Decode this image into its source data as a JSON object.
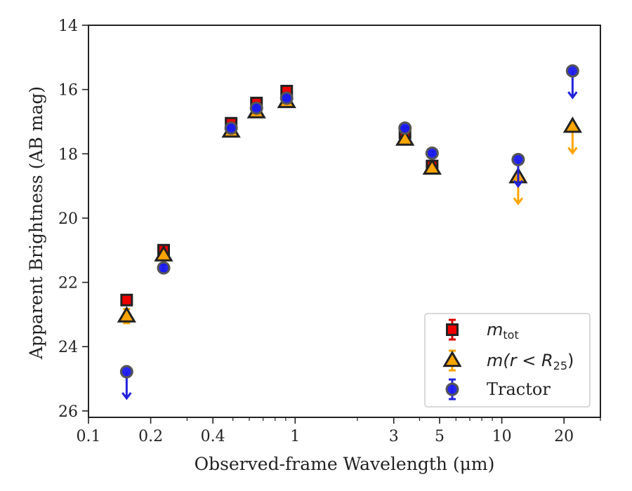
{
  "chart_data": {
    "type": "scatter",
    "xlabel": "Observed-frame Wavelength (μm)",
    "ylabel": "Apparent Brightness (AB mag)",
    "xscale": "log",
    "xlim": [
      0.1,
      30
    ],
    "ylim": [
      26.2,
      14
    ],
    "y_inverted": true,
    "x_ticks": [
      0.1,
      0.2,
      0.4,
      1,
      3,
      5,
      10,
      20
    ],
    "x_tick_labels": [
      "0.1",
      "0.2",
      "0.4",
      "1",
      "3",
      "5",
      "10",
      "20"
    ],
    "y_ticks": [
      14,
      16,
      18,
      20,
      22,
      24,
      26
    ],
    "y_tick_labels": [
      "14",
      "16",
      "18",
      "20",
      "22",
      "24",
      "26"
    ],
    "legend_position": "lower-right",
    "series": [
      {
        "name_main": "m",
        "name_sub": "tot",
        "marker": "square",
        "color": "#ee0000",
        "errcolor": "#dd0000",
        "points": [
          {
            "x": 0.153,
            "y": 22.55,
            "err": 0.12
          },
          {
            "x": 0.231,
            "y": 21.0,
            "err": 0.1
          },
          {
            "x": 0.49,
            "y": 17.05,
            "err": 0.05
          },
          {
            "x": 0.65,
            "y": 16.42,
            "err": 0.05
          },
          {
            "x": 0.91,
            "y": 16.05,
            "err": 0.05
          },
          {
            "x": 3.4,
            "y": 17.35,
            "err": 0.05
          },
          {
            "x": 4.6,
            "y": 18.38,
            "err": 0.08
          }
        ]
      },
      {
        "name_main": "m(r < R",
        "name_sub": "25",
        "name_end": ")",
        "marker": "triangle",
        "color": "#ffa500",
        "errcolor": "#ffa500",
        "points": [
          {
            "x": 0.153,
            "y": 23.05,
            "err": 0.22
          },
          {
            "x": 0.231,
            "y": 21.15,
            "err": 0.1
          },
          {
            "x": 0.49,
            "y": 17.3,
            "err": 0.05
          },
          {
            "x": 0.65,
            "y": 16.7,
            "err": 0.05
          },
          {
            "x": 0.91,
            "y": 16.38,
            "err": 0.05
          },
          {
            "x": 3.4,
            "y": 17.55,
            "err": 0.05
          },
          {
            "x": 4.6,
            "y": 18.45,
            "err": 0.08
          },
          {
            "x": 12.0,
            "y": 18.72,
            "upper_limit": true
          },
          {
            "x": 22.0,
            "y": 17.15,
            "upper_limit": true
          }
        ]
      },
      {
        "name": "Tractor",
        "marker": "circle",
        "color": "#1a1aee",
        "errcolor": "#2222dd",
        "points": [
          {
            "x": 0.153,
            "y": 24.78,
            "upper_limit": true
          },
          {
            "x": 0.231,
            "y": 21.55,
            "err": 0.1
          },
          {
            "x": 0.49,
            "y": 17.2,
            "err": 0.05
          },
          {
            "x": 0.65,
            "y": 16.58,
            "err": 0.05
          },
          {
            "x": 0.91,
            "y": 16.27,
            "err": 0.05
          },
          {
            "x": 3.4,
            "y": 17.2,
            "err": 0.05
          },
          {
            "x": 4.6,
            "y": 17.98,
            "err": 0.05
          },
          {
            "x": 12.0,
            "y": 18.18,
            "upper_limit": true
          },
          {
            "x": 22.0,
            "y": 15.42,
            "upper_limit": true
          }
        ]
      }
    ]
  }
}
